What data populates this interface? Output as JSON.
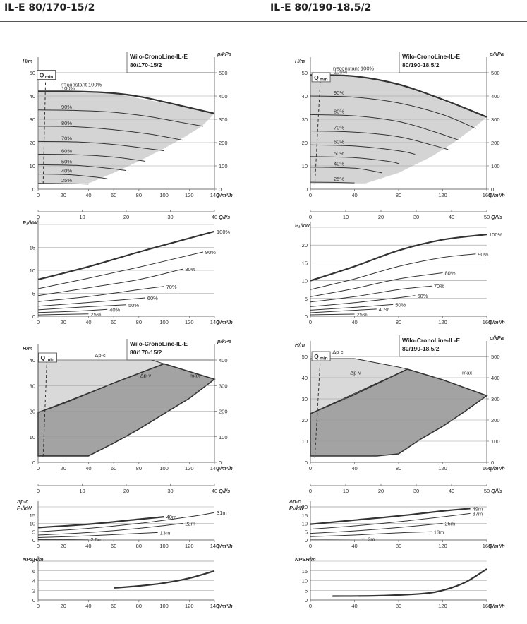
{
  "page": {
    "left_title": "IL-E 80/170-15/2",
    "right_title": "IL-E 80/190-18.5/2"
  },
  "labels": {
    "h_axis": "H/m",
    "p_axis": "p/kPa",
    "q_m3h": "Q/m³/h",
    "q_ls": "Q/l/s",
    "p1_axis": "P₁/kW",
    "dpc_p1_line1": "Δp-c",
    "dpc_p1_line2": "P₁/kW",
    "npsh_axis": "NPSH/m",
    "qmin": "Q",
    "qmin_sub": "min",
    "const_100": "n=constant 100%",
    "dp_c": "Δp-c",
    "dp_v": "Δp-v",
    "max": "max"
  },
  "chart_data": [
    {
      "id": "left-h",
      "type": "line",
      "title_line1": "Wilo-CronoLine-IL-E",
      "title_line2": "80/170-15/2",
      "xlabel": "Q/m³/h",
      "ylabel": "H/m",
      "y2label": "p/kPa",
      "xlim": [
        0,
        140
      ],
      "ylim": [
        0,
        50
      ],
      "xticks": [
        0,
        20,
        40,
        60,
        80,
        100,
        120,
        140
      ],
      "yticks": [
        0,
        10,
        20,
        30,
        40,
        50
      ],
      "y2ticks": [
        0,
        100,
        200,
        300,
        400,
        500
      ],
      "x2label": "Q/l/s",
      "x2ticks": [
        0,
        10,
        20,
        30,
        40
      ],
      "x2lim": [
        0,
        40
      ],
      "envelope": [
        [
          0,
          42
        ],
        [
          60,
          41
        ],
        [
          100,
          37
        ],
        [
          140,
          32.5
        ],
        [
          130,
          27
        ],
        [
          115,
          22
        ],
        [
          100,
          17.5
        ],
        [
          80,
          12
        ],
        [
          60,
          7
        ],
        [
          40,
          2.5
        ],
        [
          0,
          2.5
        ]
      ],
      "series": [
        {
          "name": "100%",
          "x": [
            0,
            20,
            40,
            60,
            80,
            100,
            120,
            140
          ],
          "y": [
            42,
            42,
            41.8,
            41.2,
            39.8,
            37.5,
            35,
            32.5
          ]
        },
        {
          "name": "90%",
          "x": [
            0,
            30,
            60,
            90,
            115,
            131
          ],
          "y": [
            34,
            33.8,
            33,
            31,
            28.5,
            27
          ]
        },
        {
          "name": "80%",
          "x": [
            0,
            30,
            60,
            90,
            115
          ],
          "y": [
            27,
            26.8,
            25.5,
            23.5,
            21
          ]
        },
        {
          "name": "70%",
          "x": [
            0,
            30,
            60,
            90,
            100
          ],
          "y": [
            20.5,
            20.3,
            19.2,
            17.2,
            16.5
          ]
        },
        {
          "name": "60%",
          "x": [
            0,
            30,
            60,
            85
          ],
          "y": [
            15,
            14.8,
            13.8,
            12
          ]
        },
        {
          "name": "50%",
          "x": [
            0,
            30,
            55,
            70
          ],
          "y": [
            10.5,
            10.2,
            9,
            8
          ]
        },
        {
          "name": "40%",
          "x": [
            0,
            25,
            45,
            55
          ],
          "y": [
            6.5,
            6.2,
            5.2,
            4.5
          ]
        },
        {
          "name": "25%",
          "x": [
            0,
            20,
            40
          ],
          "y": [
            2.5,
            2.4,
            2.2
          ]
        }
      ],
      "qmin_line": [
        [
          6,
          48
        ],
        [
          4,
          2
        ]
      ]
    },
    {
      "id": "left-p1",
      "type": "line",
      "ylabel": "P₁/kW",
      "xlabel": "Q/m³/h",
      "xlim": [
        0,
        140
      ],
      "ylim": [
        0,
        20
      ],
      "xticks": [
        0,
        20,
        40,
        60,
        80,
        100,
        120,
        140
      ],
      "yticks": [
        0,
        5,
        10,
        15
      ],
      "series": [
        {
          "name": "100%",
          "x": [
            0,
            40,
            80,
            120,
            140
          ],
          "y": [
            8,
            10.8,
            14,
            17,
            18.5
          ]
        },
        {
          "name": "90%",
          "x": [
            0,
            40,
            80,
            120,
            131
          ],
          "y": [
            6,
            8.3,
            10.7,
            13.3,
            14
          ]
        },
        {
          "name": "80%",
          "x": [
            0,
            40,
            80,
            115
          ],
          "y": [
            4.5,
            6.2,
            8,
            10.3
          ]
        },
        {
          "name": "70%",
          "x": [
            0,
            40,
            80,
            100
          ],
          "y": [
            3.2,
            4.3,
            5.8,
            6.5
          ]
        },
        {
          "name": "60%",
          "x": [
            0,
            40,
            85
          ],
          "y": [
            2.2,
            3,
            4
          ]
        },
        {
          "name": "50%",
          "x": [
            0,
            35,
            70
          ],
          "y": [
            1.4,
            2,
            2.5
          ]
        },
        {
          "name": "40%",
          "x": [
            0,
            30,
            55
          ],
          "y": [
            0.8,
            1.1,
            1.5
          ]
        },
        {
          "name": "25%",
          "x": [
            0,
            20,
            40
          ],
          "y": [
            0.3,
            0.4,
            0.5
          ]
        }
      ]
    },
    {
      "id": "left-dp",
      "type": "area",
      "title_line1": "Wilo-CronoLine-IL-E",
      "title_line2": "80/170-15/2",
      "xlabel": "Q/m³/h",
      "ylabel": "H/m",
      "y2label": "p/kPa",
      "xlim": [
        0,
        140
      ],
      "ylim": [
        0,
        40
      ],
      "xticks": [
        0,
        20,
        40,
        60,
        80,
        100,
        120,
        140
      ],
      "yticks": [
        0,
        10,
        20,
        30,
        40
      ],
      "y2ticks": [
        0,
        100,
        200,
        300,
        400
      ],
      "x2label": "Q/l/s",
      "x2ticks": [
        0,
        10,
        20,
        30,
        40
      ],
      "x2lim": [
        0,
        40
      ],
      "light_region": [
        [
          0,
          40
        ],
        [
          90,
          40
        ],
        [
          100,
          38.5
        ],
        [
          0,
          19.5
        ]
      ],
      "dark_region": [
        [
          0,
          19.5
        ],
        [
          20,
          23
        ],
        [
          60,
          31
        ],
        [
          100,
          38.5
        ],
        [
          140,
          32.5
        ],
        [
          120,
          25
        ],
        [
          100,
          19
        ],
        [
          80,
          13
        ],
        [
          60,
          7.5
        ],
        [
          40,
          2.5
        ],
        [
          0,
          2.5
        ]
      ],
      "qmin_line": [
        [
          7,
          40
        ],
        [
          4,
          2
        ]
      ]
    },
    {
      "id": "left-dp-p1",
      "type": "line",
      "xlabel": "Q/m³/h",
      "xlim": [
        0,
        140
      ],
      "ylim": [
        0,
        20
      ],
      "xticks": [
        0,
        20,
        40,
        60,
        80,
        100,
        120,
        140
      ],
      "yticks": [
        0,
        5,
        10,
        15
      ],
      "series": [
        {
          "name": "40m",
          "x": [
            0,
            40,
            80,
            100
          ],
          "y": [
            7.5,
            9.5,
            12.5,
            14
          ]
        },
        {
          "name": "31m",
          "x": [
            0,
            40,
            80,
            120,
            140
          ],
          "y": [
            5,
            7,
            10,
            14,
            16.5
          ]
        },
        {
          "name": "22m",
          "x": [
            0,
            40,
            80,
            115
          ],
          "y": [
            3,
            4.5,
            7,
            10
          ]
        },
        {
          "name": "13m",
          "x": [
            0,
            40,
            80,
            95
          ],
          "y": [
            1.5,
            2.5,
            4,
            4.5
          ]
        },
        {
          "name": "2.5m",
          "x": [
            0,
            20,
            40
          ],
          "y": [
            0.3,
            0.4,
            0.5
          ]
        }
      ]
    },
    {
      "id": "left-npsh",
      "type": "line",
      "xlabel": "Q/m³/h",
      "ylabel": "NPSH/m",
      "xlim": [
        0,
        140
      ],
      "ylim": [
        0,
        8
      ],
      "xticks": [
        0,
        20,
        40,
        60,
        80,
        100,
        120,
        140
      ],
      "yticks": [
        0,
        2,
        4,
        6,
        8
      ],
      "series": [
        {
          "name": "",
          "x": [
            60,
            80,
            100,
            120,
            140
          ],
          "y": [
            2.5,
            2.9,
            3.5,
            4.5,
            6
          ]
        }
      ]
    },
    {
      "id": "right-h",
      "type": "line",
      "title_line1": "Wilo-CronoLine-IL-E",
      "title_line2": "80/190-18.5/2",
      "xlabel": "Q/m³/h",
      "ylabel": "H/m",
      "y2label": "p/kPa",
      "xlim": [
        0,
        160
      ],
      "ylim": [
        0,
        50
      ],
      "xticks": [
        0,
        40,
        80,
        120,
        160
      ],
      "yticks": [
        0,
        10,
        20,
        30,
        40,
        50
      ],
      "y2ticks": [
        0,
        100,
        200,
        300,
        400,
        500
      ],
      "x2label": "Q/l/s",
      "x2ticks": [
        0,
        10,
        20,
        30,
        40,
        50
      ],
      "x2lim": [
        0,
        50
      ],
      "envelope": [
        [
          0,
          49
        ],
        [
          40,
          48.5
        ],
        [
          80,
          45
        ],
        [
          120,
          38
        ],
        [
          160,
          31
        ],
        [
          150,
          27
        ],
        [
          130,
          20
        ],
        [
          110,
          14
        ],
        [
          80,
          7
        ],
        [
          50,
          2.5
        ],
        [
          0,
          2.5
        ]
      ],
      "series": [
        {
          "name": "100%",
          "x": [
            0,
            40,
            80,
            120,
            160
          ],
          "y": [
            49,
            48.5,
            45,
            38.5,
            31
          ]
        },
        {
          "name": "90%",
          "x": [
            0,
            40,
            80,
            120,
            150
          ],
          "y": [
            40,
            39.5,
            37,
            32,
            26
          ]
        },
        {
          "name": "80%",
          "x": [
            0,
            40,
            80,
            110,
            135
          ],
          "y": [
            32,
            31.5,
            29,
            25,
            21
          ]
        },
        {
          "name": "70%",
          "x": [
            0,
            40,
            80,
            110,
            125
          ],
          "y": [
            25,
            24.5,
            22.5,
            19,
            17
          ]
        },
        {
          "name": "60%",
          "x": [
            0,
            40,
            80,
            95
          ],
          "y": [
            19,
            18.5,
            16.5,
            15
          ]
        },
        {
          "name": "50%",
          "x": [
            0,
            40,
            70,
            80
          ],
          "y": [
            14,
            13.5,
            12,
            11
          ]
        },
        {
          "name": "40%",
          "x": [
            0,
            40,
            65
          ],
          "y": [
            9.5,
            9,
            7
          ]
        },
        {
          "name": "25%",
          "x": [
            0,
            20,
            40
          ],
          "y": [
            3,
            2.9,
            2.7
          ]
        }
      ],
      "qmin_line": [
        [
          9,
          47
        ],
        [
          4,
          2
        ]
      ]
    },
    {
      "id": "right-p1",
      "type": "line",
      "ylabel": "P₁/kW",
      "xlabel": "Q/m³/h",
      "xlim": [
        0,
        160
      ],
      "ylim": [
        0,
        25
      ],
      "xticks": [
        0,
        40,
        80,
        120,
        160
      ],
      "yticks": [
        0,
        5,
        10,
        15,
        20
      ],
      "series": [
        {
          "name": "100%",
          "x": [
            0,
            40,
            80,
            120,
            160
          ],
          "y": [
            10,
            14,
            18.5,
            21.5,
            23
          ]
        },
        {
          "name": "90%",
          "x": [
            0,
            40,
            80,
            120,
            150
          ],
          "y": [
            7.5,
            10.5,
            14,
            16.5,
            17.5
          ]
        },
        {
          "name": "80%",
          "x": [
            0,
            40,
            80,
            120
          ],
          "y": [
            5.5,
            7.8,
            10.5,
            12.2
          ]
        },
        {
          "name": "70%",
          "x": [
            0,
            40,
            80,
            110
          ],
          "y": [
            4,
            5.5,
            7.5,
            8.5
          ]
        },
        {
          "name": "60%",
          "x": [
            0,
            40,
            80,
            95
          ],
          "y": [
            2.7,
            3.8,
            5.2,
            5.8
          ]
        },
        {
          "name": "50%",
          "x": [
            0,
            40,
            75
          ],
          "y": [
            1.7,
            2.5,
            3.3
          ]
        },
        {
          "name": "40%",
          "x": [
            0,
            30,
            60
          ],
          "y": [
            1,
            1.5,
            2
          ]
        },
        {
          "name": "25%",
          "x": [
            0,
            20,
            40
          ],
          "y": [
            0.4,
            0.5,
            0.6
          ]
        }
      ]
    },
    {
      "id": "right-dp",
      "type": "area",
      "title_line1": "Wilo-CronoLine-IL-E",
      "title_line2": "80/190-18.5/2",
      "xlabel": "Q/m³/h",
      "ylabel": "H/m",
      "y2label": "p/kPa",
      "xlim": [
        0,
        160
      ],
      "ylim": [
        0,
        50
      ],
      "xticks": [
        0,
        40,
        80,
        120,
        160
      ],
      "yticks": [
        0,
        10,
        20,
        30,
        40,
        50
      ],
      "y2ticks": [
        0,
        100,
        200,
        300,
        400,
        500
      ],
      "x2label": "Q/l/s",
      "x2ticks": [
        0,
        10,
        20,
        30,
        40,
        50
      ],
      "x2lim": [
        0,
        50
      ],
      "light_region": [
        [
          0,
          49
        ],
        [
          40,
          49
        ],
        [
          80,
          45
        ],
        [
          88,
          44
        ],
        [
          0,
          23
        ]
      ],
      "dark_region": [
        [
          0,
          23
        ],
        [
          40,
          32
        ],
        [
          88,
          44
        ],
        [
          120,
          39
        ],
        [
          160,
          31.5
        ],
        [
          140,
          24
        ],
        [
          120,
          17
        ],
        [
          100,
          11
        ],
        [
          80,
          4
        ],
        [
          60,
          3
        ],
        [
          0,
          3
        ]
      ],
      "qmin_line": [
        [
          9,
          49
        ],
        [
          4,
          2
        ]
      ]
    },
    {
      "id": "right-dp-p1",
      "type": "line",
      "xlabel": "Q/m³/h",
      "xlim": [
        0,
        160
      ],
      "ylim": [
        0,
        20
      ],
      "xticks": [
        0,
        40,
        80,
        120,
        160
      ],
      "yticks": [
        0,
        5,
        10,
        15,
        20
      ],
      "series": [
        {
          "name": "49m",
          "x": [
            0,
            40,
            80,
            120,
            145
          ],
          "y": [
            9.5,
            12,
            14.5,
            17.5,
            19
          ]
        },
        {
          "name": "37m",
          "x": [
            0,
            40,
            80,
            120,
            145
          ],
          "y": [
            6.5,
            8.5,
            11,
            14,
            16
          ]
        },
        {
          "name": "25m",
          "x": [
            0,
            40,
            80,
            120
          ],
          "y": [
            4,
            5.5,
            7.5,
            10
          ]
        },
        {
          "name": "13m",
          "x": [
            0,
            40,
            80,
            110
          ],
          "y": [
            2,
            3,
            4.3,
            5
          ]
        },
        {
          "name": "3m",
          "x": [
            0,
            30,
            50
          ],
          "y": [
            0.5,
            0.6,
            0.7
          ]
        }
      ]
    },
    {
      "id": "right-npsh",
      "type": "line",
      "xlabel": "Q/m³/h",
      "ylabel": "NPSH/m",
      "xlim": [
        0,
        160
      ],
      "ylim": [
        0,
        20
      ],
      "xticks": [
        0,
        40,
        80,
        120,
        160
      ],
      "yticks": [
        0,
        5,
        10,
        15
      ],
      "series": [
        {
          "name": "",
          "x": [
            20,
            60,
            100,
            120,
            140,
            160
          ],
          "y": [
            2,
            2.2,
            3.2,
            5,
            9,
            16
          ]
        }
      ]
    }
  ]
}
